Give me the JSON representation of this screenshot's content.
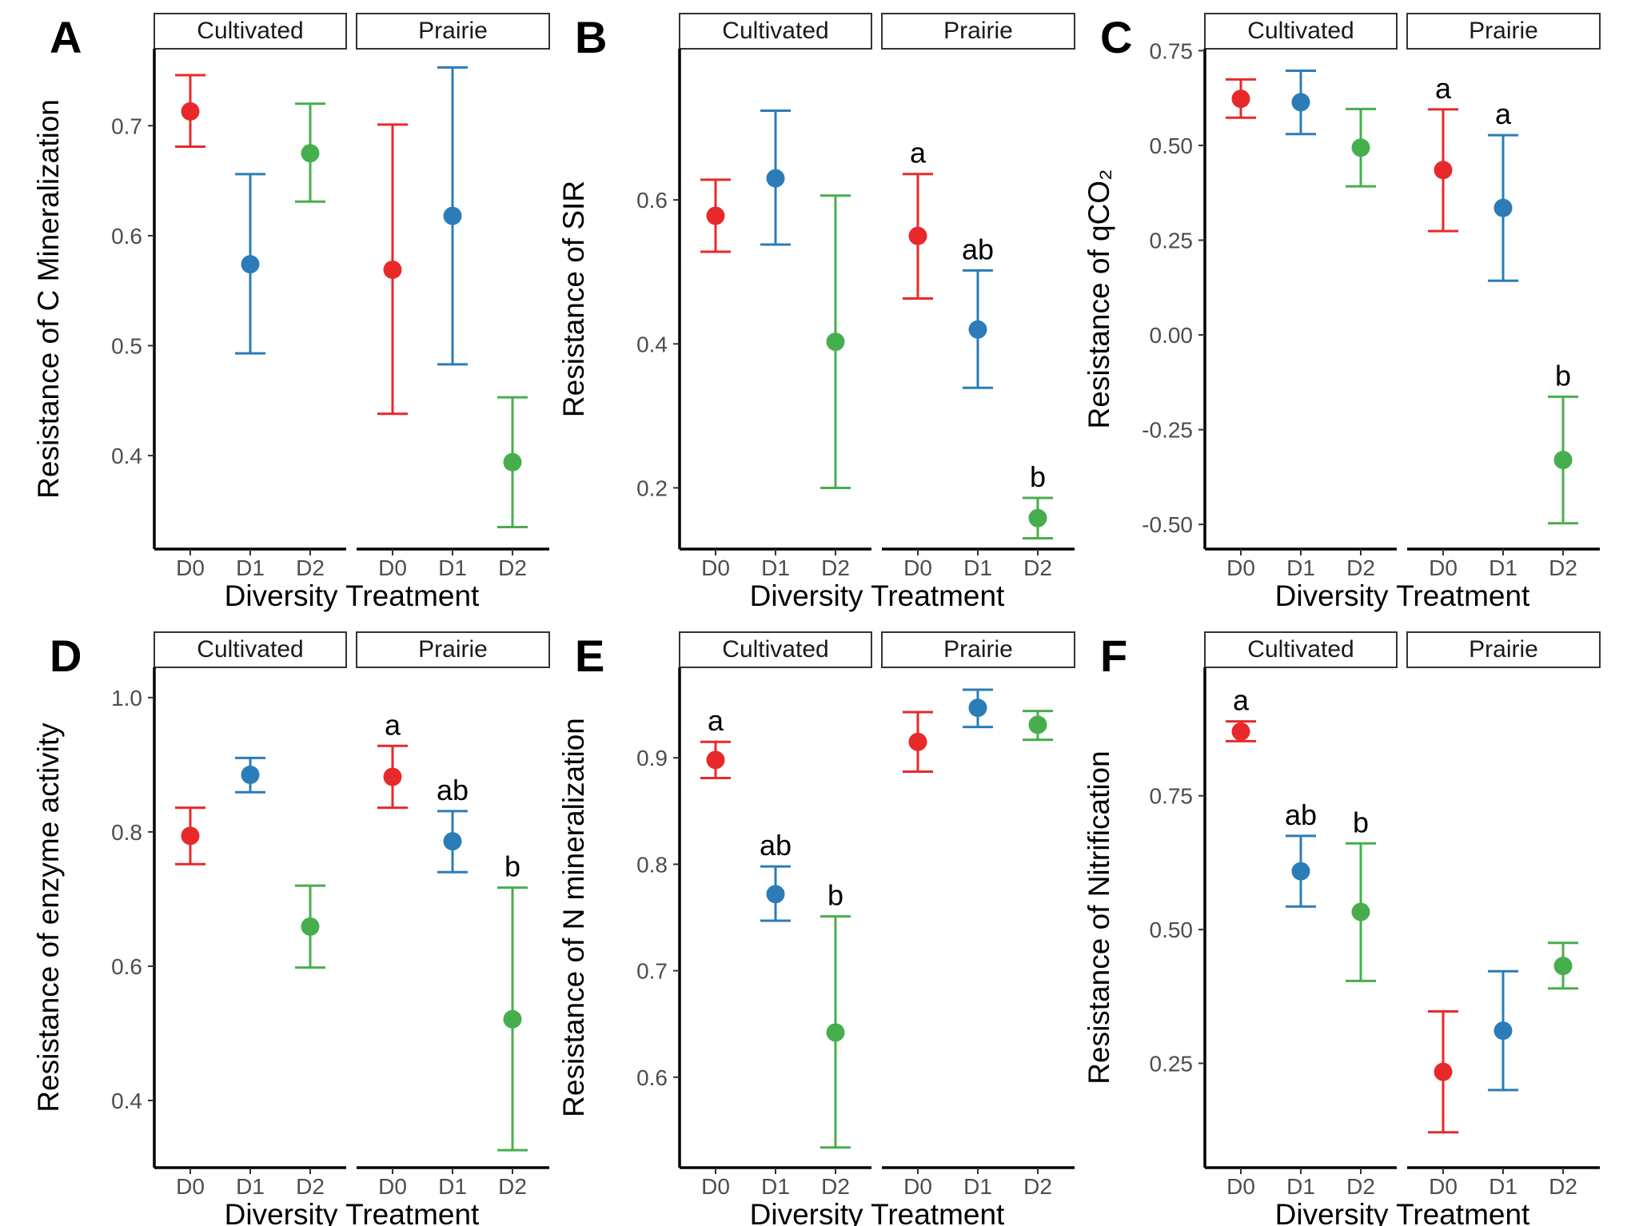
{
  "colors": {
    "D0": "#E8292A",
    "D1": "#2B7CB8",
    "D2": "#47AE4E"
  },
  "shared": {
    "xlabel": "Diversity Treatment",
    "facets": [
      "Cultivated",
      "Prairie"
    ],
    "categories": [
      "D0",
      "D1",
      "D2"
    ]
  },
  "chart_data": [
    {
      "type": "scatter",
      "panel": "A",
      "ylabel": "Resistance of C Mineralization",
      "ylim": [
        0.315,
        0.77
      ],
      "yticks": [
        0.4,
        0.5,
        0.6,
        0.7
      ],
      "ytick_labels": [
        "0.4",
        "0.5",
        "0.6",
        "0.7"
      ],
      "facets": [
        {
          "name": "Cultivated",
          "points": [
            {
              "x": "D0",
              "y": 0.713,
              "low": 0.681,
              "high": 0.746,
              "label": ""
            },
            {
              "x": "D1",
              "y": 0.574,
              "low": 0.493,
              "high": 0.656,
              "label": ""
            },
            {
              "x": "D2",
              "y": 0.675,
              "low": 0.631,
              "high": 0.72,
              "label": ""
            }
          ]
        },
        {
          "name": "Prairie",
          "points": [
            {
              "x": "D0",
              "y": 0.569,
              "low": 0.438,
              "high": 0.701,
              "label": ""
            },
            {
              "x": "D1",
              "y": 0.618,
              "low": 0.483,
              "high": 0.753,
              "label": ""
            },
            {
              "x": "D2",
              "y": 0.394,
              "low": 0.335,
              "high": 0.453,
              "label": ""
            }
          ]
        }
      ]
    },
    {
      "type": "scatter",
      "panel": "B",
      "ylabel": "Resistance of SIR",
      "ylim": [
        0.115,
        0.81
      ],
      "yticks": [
        0.2,
        0.4,
        0.6
      ],
      "ytick_labels": [
        "0.2",
        "0.4",
        "0.6"
      ],
      "facets": [
        {
          "name": "Cultivated",
          "points": [
            {
              "x": "D0",
              "y": 0.578,
              "low": 0.528,
              "high": 0.628,
              "label": ""
            },
            {
              "x": "D1",
              "y": 0.63,
              "low": 0.538,
              "high": 0.724,
              "label": ""
            },
            {
              "x": "D2",
              "y": 0.403,
              "low": 0.2,
              "high": 0.606,
              "label": ""
            }
          ]
        },
        {
          "name": "Prairie",
          "points": [
            {
              "x": "D0",
              "y": 0.55,
              "low": 0.463,
              "high": 0.636,
              "label": "a"
            },
            {
              "x": "D1",
              "y": 0.42,
              "low": 0.339,
              "high": 0.502,
              "label": "ab"
            },
            {
              "x": "D2",
              "y": 0.158,
              "low": 0.13,
              "high": 0.186,
              "label": "b"
            }
          ]
        }
      ]
    },
    {
      "type": "scatter",
      "panel": "C",
      "ylabel": "Resistance of qCO₂",
      "ylim": [
        -0.565,
        0.755
      ],
      "yticks": [
        -0.5,
        -0.25,
        0.0,
        0.25,
        0.5,
        0.75
      ],
      "ytick_labels": [
        "-0.50",
        "-0.25",
        "0.00",
        "0.25",
        "0.50",
        "0.75"
      ],
      "facets": [
        {
          "name": "Cultivated",
          "points": [
            {
              "x": "D0",
              "y": 0.623,
              "low": 0.573,
              "high": 0.674,
              "label": ""
            },
            {
              "x": "D1",
              "y": 0.614,
              "low": 0.53,
              "high": 0.697,
              "label": ""
            },
            {
              "x": "D2",
              "y": 0.494,
              "low": 0.392,
              "high": 0.596,
              "label": ""
            }
          ]
        },
        {
          "name": "Prairie",
          "points": [
            {
              "x": "D0",
              "y": 0.435,
              "low": 0.274,
              "high": 0.595,
              "label": "a"
            },
            {
              "x": "D1",
              "y": 0.335,
              "low": 0.143,
              "high": 0.527,
              "label": "a"
            },
            {
              "x": "D2",
              "y": -0.33,
              "low": -0.497,
              "high": -0.163,
              "label": "b"
            }
          ]
        }
      ]
    },
    {
      "type": "scatter",
      "panel": "D",
      "ylabel": "Resistance of enzyme activity",
      "ylim": [
        0.3,
        1.045
      ],
      "yticks": [
        0.4,
        0.6,
        0.8,
        1.0
      ],
      "ytick_labels": [
        "0.4",
        "0.6",
        "0.8",
        "1.0"
      ],
      "facets": [
        {
          "name": "Cultivated",
          "points": [
            {
              "x": "D0",
              "y": 0.794,
              "low": 0.752,
              "high": 0.836,
              "label": ""
            },
            {
              "x": "D1",
              "y": 0.885,
              "low": 0.859,
              "high": 0.91,
              "label": ""
            },
            {
              "x": "D2",
              "y": 0.659,
              "low": 0.598,
              "high": 0.72,
              "label": ""
            }
          ]
        },
        {
          "name": "Prairie",
          "points": [
            {
              "x": "D0",
              "y": 0.882,
              "low": 0.836,
              "high": 0.928,
              "label": "a"
            },
            {
              "x": "D1",
              "y": 0.786,
              "low": 0.74,
              "high": 0.831,
              "label": "ab"
            },
            {
              "x": "D2",
              "y": 0.521,
              "low": 0.326,
              "high": 0.717,
              "label": "b"
            }
          ]
        }
      ]
    },
    {
      "type": "scatter",
      "panel": "E",
      "ylabel": "Resistance of N mineralization",
      "ylim": [
        0.515,
        0.985
      ],
      "yticks": [
        0.6,
        0.7,
        0.8,
        0.9
      ],
      "ytick_labels": [
        "0.6",
        "0.7",
        "0.8",
        "0.9"
      ],
      "facets": [
        {
          "name": "Cultivated",
          "points": [
            {
              "x": "D0",
              "y": 0.898,
              "low": 0.881,
              "high": 0.915,
              "label": "a"
            },
            {
              "x": "D1",
              "y": 0.772,
              "low": 0.747,
              "high": 0.798,
              "label": "ab"
            },
            {
              "x": "D2",
              "y": 0.642,
              "low": 0.534,
              "high": 0.751,
              "label": "b"
            }
          ]
        },
        {
          "name": "Prairie",
          "points": [
            {
              "x": "D0",
              "y": 0.915,
              "low": 0.887,
              "high": 0.943,
              "label": ""
            },
            {
              "x": "D1",
              "y": 0.947,
              "low": 0.929,
              "high": 0.964,
              "label": ""
            },
            {
              "x": "D2",
              "y": 0.931,
              "low": 0.917,
              "high": 0.944,
              "label": ""
            }
          ]
        }
      ]
    },
    {
      "type": "scatter",
      "panel": "F",
      "ylabel": "Resistance of Nitrification",
      "ylim": [
        0.055,
        0.99
      ],
      "yticks": [
        0.25,
        0.5,
        0.75
      ],
      "ytick_labels": [
        "0.25",
        "0.50",
        "0.75"
      ],
      "facets": [
        {
          "name": "Cultivated",
          "points": [
            {
              "x": "D0",
              "y": 0.87,
              "low": 0.852,
              "high": 0.889,
              "label": "a"
            },
            {
              "x": "D1",
              "y": 0.609,
              "low": 0.543,
              "high": 0.675,
              "label": "ab"
            },
            {
              "x": "D2",
              "y": 0.533,
              "low": 0.404,
              "high": 0.661,
              "label": "b"
            }
          ]
        },
        {
          "name": "Prairie",
          "points": [
            {
              "x": "D0",
              "y": 0.234,
              "low": 0.121,
              "high": 0.347,
              "label": ""
            },
            {
              "x": "D1",
              "y": 0.311,
              "low": 0.2,
              "high": 0.422,
              "label": ""
            },
            {
              "x": "D2",
              "y": 0.432,
              "low": 0.39,
              "high": 0.475,
              "label": ""
            }
          ]
        }
      ]
    }
  ]
}
